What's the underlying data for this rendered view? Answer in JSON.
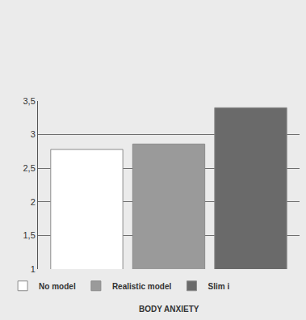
{
  "chart_data": {
    "type": "bar",
    "x_label": "BODY ANXIETY",
    "categories": [
      null
    ],
    "series": [
      {
        "name": "No model",
        "color": "#ffffff",
        "values": [
          2.78
        ]
      },
      {
        "name": "Realistic model",
        "color": "#9a9a9a",
        "values": [
          2.86
        ]
      },
      {
        "name": "Slim i",
        "color": "#6a6a6a",
        "values": [
          3.4
        ]
      }
    ],
    "ylim": [
      1,
      3.5
    ],
    "yticks": [
      1,
      {
        "value": 1.5,
        "label": "1,5"
      },
      2,
      {
        "value": 2.5,
        "label": "2,5"
      },
      3,
      {
        "value": 3.5,
        "label": "3,5"
      }
    ],
    "grid": true,
    "legend": "bottom",
    "tick_labels": "y"
  }
}
